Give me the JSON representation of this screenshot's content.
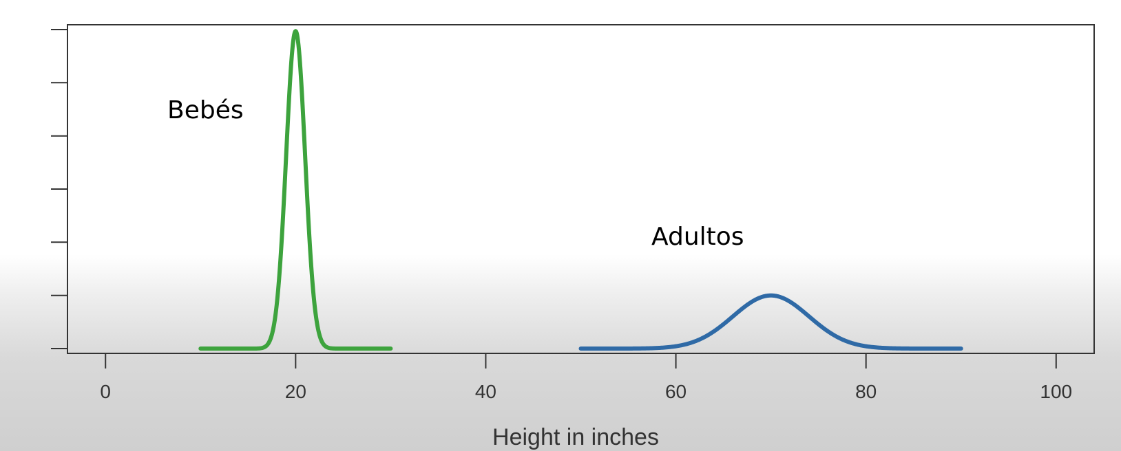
{
  "chart_data": {
    "type": "line",
    "title": "",
    "xlabel": "Height in inches",
    "ylabel": "",
    "xlim": [
      -4,
      104
    ],
    "ylim": [
      -0.003,
      0.203
    ],
    "xticks": [
      0,
      20,
      40,
      60,
      80,
      100
    ],
    "xtick_labels": [
      "0",
      "20",
      "40",
      "60",
      "80",
      "100"
    ],
    "yticks": [
      0,
      0.0333,
      0.0667,
      0.1,
      0.1333,
      0.1667,
      0.2
    ],
    "grid": false,
    "legend": "none",
    "series": [
      {
        "label": "Bebés",
        "color": "#3da33d",
        "distribution": "normal",
        "mean": 20,
        "sd": 1,
        "x_range": [
          10,
          30
        ],
        "peak": 0.199
      },
      {
        "label": "Adultos",
        "color": "#2f6aa6",
        "distribution": "normal",
        "mean": 70,
        "sd": 4,
        "x_range": [
          50,
          90
        ],
        "peak": 0.0333
      }
    ]
  }
}
